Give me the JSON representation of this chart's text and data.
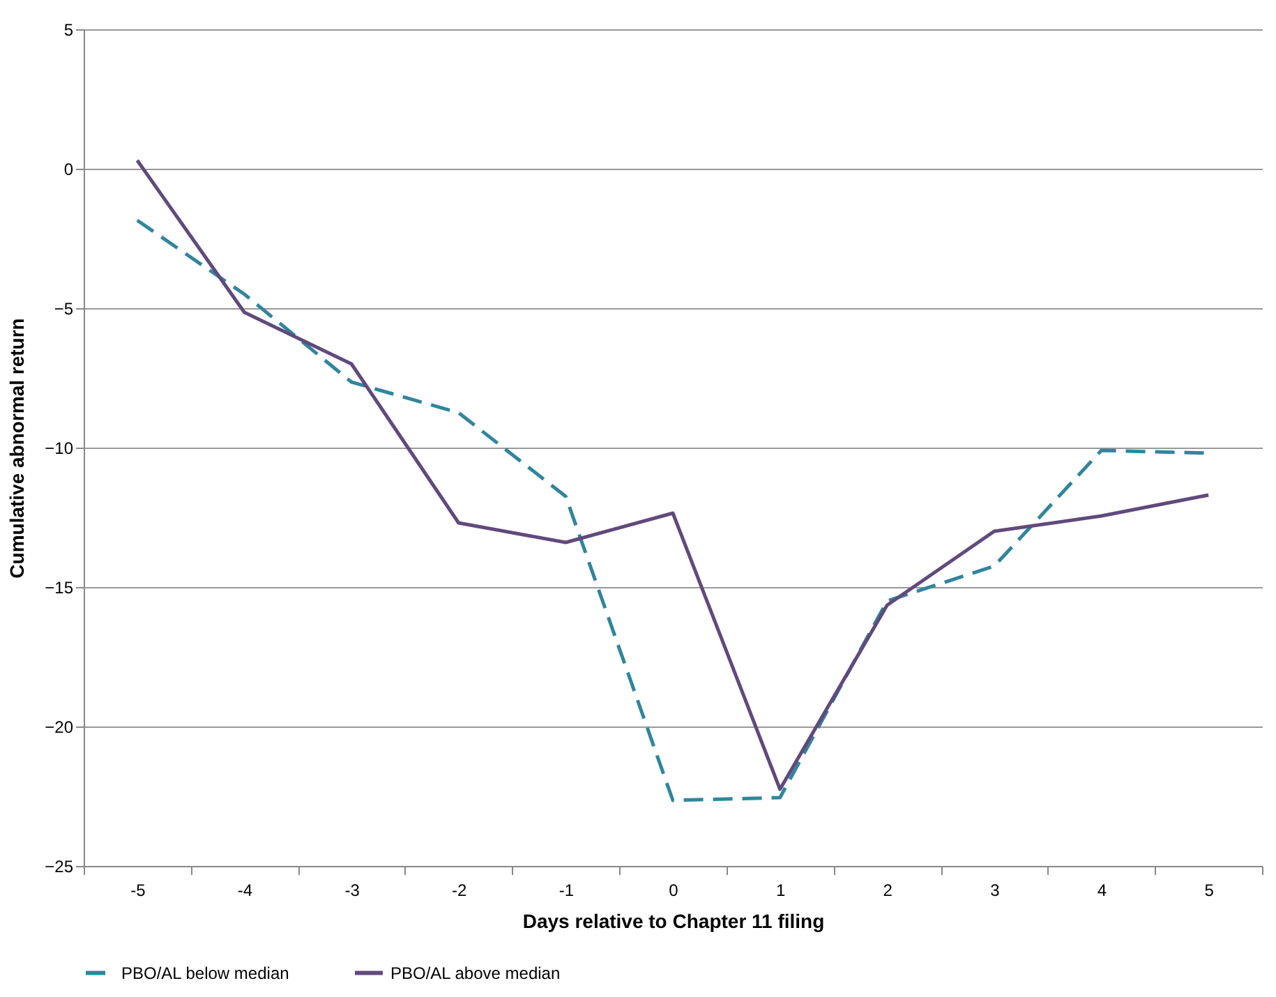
{
  "chart_data": {
    "type": "line",
    "xlabel": "Days relative to Chapter 11 filing",
    "ylabel": "Cumulative abnormal return",
    "categories": [
      "-5",
      "-4",
      "-3",
      "-2",
      "-1",
      "0",
      "1",
      "2",
      "3",
      "4",
      "5"
    ],
    "series": [
      {
        "name": "PBO/AL below median",
        "color": "#31859c",
        "line_style": "dashed",
        "values": [
          -1.85,
          -4.5,
          -7.65,
          -8.75,
          -11.75,
          -22.65,
          -22.55,
          -15.5,
          -14.25,
          -10.1,
          -10.2
        ]
      },
      {
        "name": "PBO/AL above median",
        "color": "#604a7b",
        "line_style": "solid",
        "values": [
          0.3,
          -5.15,
          -7.0,
          -12.7,
          -13.4,
          -12.35,
          -22.25,
          -15.65,
          -13.0,
          -12.45,
          -11.7
        ]
      }
    ],
    "ylim": [
      -25,
      5
    ],
    "yticks": [
      -25,
      -20,
      -15,
      -10,
      -5,
      0,
      5
    ],
    "grid": "y",
    "legend": "bottom"
  }
}
